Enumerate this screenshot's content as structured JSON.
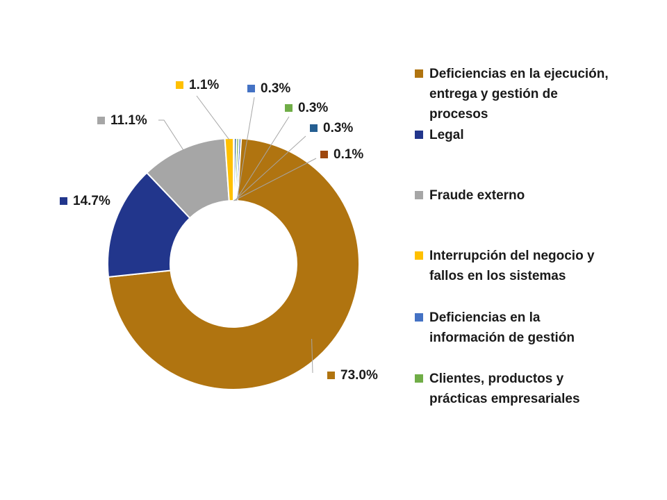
{
  "chart_data": {
    "type": "pie",
    "variant": "donut",
    "categories": [
      "Deficiencias en la ejecución, entrega y gestión de procesos",
      "Legal",
      "Fraude externo",
      "Interrupción del negocio y fallos en los sistemas",
      "Deficiencias en la información de gestión",
      "Clientes, productos y prácticas empresariales"
    ],
    "slices": [
      {
        "name": "Deficiencias en la ejecución, entrega y gestión de procesos",
        "value": 73.0,
        "label": "73.0%",
        "color": "#B07410"
      },
      {
        "name": "Legal",
        "value": 14.7,
        "label": "14.7%",
        "color": "#22368C"
      },
      {
        "name": "Fraude externo",
        "value": 11.1,
        "label": "11.1%",
        "color": "#A6A6A6"
      },
      {
        "name": "Interrupción del negocio y fallos en los sistemas",
        "value": 1.1,
        "label": "1.1%",
        "color": "#FFC000"
      },
      {
        "name": "Deficiencias en la información de gestión",
        "value": 0.3,
        "label": "0.3%",
        "color": "#4472C4"
      },
      {
        "name": "Clientes, productos y prácticas empresariales",
        "value": 0.3,
        "label": "0.3%",
        "color": "#70AD47"
      },
      {
        "name": "",
        "value": 0.3,
        "label": "0.3%",
        "color": "#255E91"
      },
      {
        "name": "",
        "value": 0.1,
        "label": "0.1%",
        "color": "#9E480E"
      }
    ],
    "legend_position": "right"
  }
}
